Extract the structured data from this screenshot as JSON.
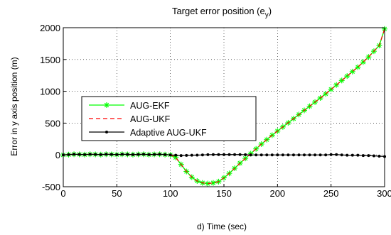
{
  "chart_data": {
    "type": "line",
    "title": "Target error position (e",
    "title_subscript": "y",
    "title_suffix": ")",
    "xlabel": "d) Time (sec)",
    "ylabel": "Error in y axis position (m)",
    "xlim": [
      0,
      300
    ],
    "ylim": [
      -500,
      2000
    ],
    "xticks": [
      0,
      50,
      100,
      150,
      200,
      250,
      300
    ],
    "yticks": [
      -500,
      0,
      500,
      1000,
      1500,
      2000
    ],
    "grid": true,
    "grid_style": "dotted",
    "legend_position": "center-left",
    "series": [
      {
        "name": "AUG-EKF",
        "color": "#00ff00",
        "line_style": "solid",
        "marker": "asterisk",
        "x": [
          0,
          5,
          10,
          15,
          20,
          25,
          30,
          35,
          40,
          45,
          50,
          55,
          60,
          65,
          70,
          75,
          80,
          85,
          90,
          95,
          100,
          105,
          110,
          115,
          120,
          125,
          130,
          135,
          140,
          145,
          150,
          155,
          160,
          165,
          170,
          175,
          180,
          185,
          190,
          195,
          200,
          205,
          210,
          215,
          220,
          225,
          230,
          235,
          240,
          245,
          250,
          255,
          260,
          265,
          270,
          275,
          280,
          285,
          290,
          295,
          300
        ],
        "y": [
          0,
          5,
          10,
          8,
          5,
          10,
          8,
          5,
          10,
          8,
          5,
          10,
          8,
          5,
          8,
          10,
          5,
          8,
          10,
          5,
          0,
          -40,
          -150,
          -260,
          -350,
          -410,
          -440,
          -450,
          -440,
          -420,
          -360,
          -290,
          -210,
          -130,
          -55,
          20,
          95,
          170,
          240,
          310,
          375,
          440,
          505,
          570,
          635,
          700,
          765,
          830,
          895,
          960,
          1030,
          1100,
          1170,
          1240,
          1310,
          1380,
          1460,
          1540,
          1630,
          1720,
          1980
        ]
      },
      {
        "name": "AUG-UKF",
        "color": "#ff0000",
        "line_style": "dashed",
        "marker": "none",
        "x": [
          0,
          5,
          10,
          15,
          20,
          25,
          30,
          35,
          40,
          45,
          50,
          55,
          60,
          65,
          70,
          75,
          80,
          85,
          90,
          95,
          100,
          105,
          110,
          115,
          120,
          125,
          130,
          135,
          140,
          145,
          150,
          155,
          160,
          165,
          170,
          175,
          180,
          185,
          190,
          195,
          200,
          205,
          210,
          215,
          220,
          225,
          230,
          235,
          240,
          245,
          250,
          255,
          260,
          265,
          270,
          275,
          280,
          285,
          290,
          295,
          300
        ],
        "y": [
          0,
          5,
          10,
          8,
          5,
          10,
          8,
          5,
          10,
          8,
          5,
          10,
          8,
          5,
          8,
          10,
          5,
          8,
          10,
          5,
          0,
          -40,
          -150,
          -260,
          -350,
          -410,
          -440,
          -450,
          -440,
          -420,
          -360,
          -290,
          -210,
          -130,
          -55,
          20,
          95,
          170,
          240,
          310,
          375,
          440,
          505,
          570,
          635,
          700,
          765,
          830,
          895,
          960,
          1030,
          1100,
          1170,
          1240,
          1310,
          1380,
          1460,
          1540,
          1630,
          1720,
          1980
        ]
      },
      {
        "name": "Adaptive AUG-UKF",
        "color": "#000000",
        "line_style": "solid",
        "marker": "dot",
        "x": [
          0,
          5,
          10,
          15,
          20,
          25,
          30,
          35,
          40,
          45,
          50,
          55,
          60,
          65,
          70,
          75,
          80,
          85,
          90,
          95,
          100,
          105,
          110,
          115,
          120,
          125,
          130,
          135,
          140,
          145,
          150,
          155,
          160,
          165,
          170,
          175,
          180,
          185,
          190,
          195,
          200,
          205,
          210,
          215,
          220,
          225,
          230,
          235,
          240,
          245,
          250,
          255,
          260,
          265,
          270,
          275,
          280,
          285,
          290,
          295,
          300
        ],
        "y": [
          0,
          5,
          10,
          8,
          5,
          10,
          8,
          5,
          10,
          8,
          5,
          10,
          8,
          5,
          8,
          10,
          5,
          8,
          10,
          5,
          0,
          -5,
          -10,
          -8,
          -5,
          -3,
          0,
          3,
          5,
          5,
          5,
          5,
          5,
          5,
          3,
          0,
          0,
          0,
          0,
          0,
          0,
          0,
          0,
          0,
          0,
          0,
          0,
          0,
          0,
          0,
          5,
          5,
          0,
          -5,
          -5,
          -5,
          -10,
          -10,
          -15,
          -20,
          -25
        ]
      }
    ]
  }
}
